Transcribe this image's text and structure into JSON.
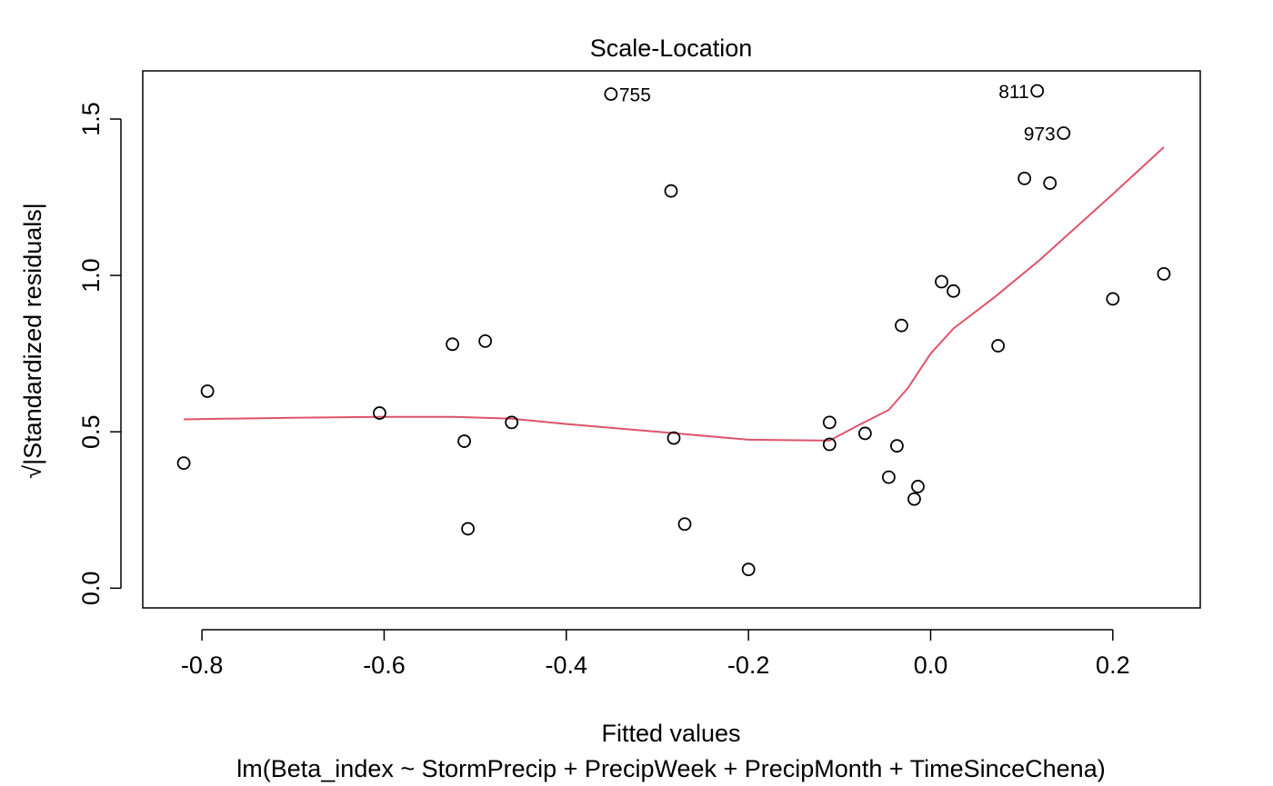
{
  "chart_data": {
    "type": "scatter",
    "title": "Scale-Location",
    "xlabel": "Fitted values",
    "subtitle": "lm(Beta_index ~ StormPrecip + PrecipWeek + PrecipMonth + TimeSinceChena)",
    "ylabel": "√|Standardized residuals|",
    "xlim": [
      -0.865,
      0.296
    ],
    "ylim": [
      -0.063,
      1.654
    ],
    "xticks": [
      -0.8,
      -0.6,
      -0.4,
      -0.2,
      0.0,
      0.2
    ],
    "xtick_labels": [
      "-0.8",
      "-0.6",
      "-0.4",
      "-0.2",
      "0.0",
      "0.2"
    ],
    "yticks": [
      0.0,
      0.5,
      1.0,
      1.5
    ],
    "ytick_labels": [
      "0.0",
      "0.5",
      "1.0",
      "1.5"
    ],
    "grid": false,
    "colors": {
      "points": "#000000",
      "smoother": "#DF536B",
      "axes": "#000000"
    },
    "points": [
      {
        "x": -0.82,
        "y": 0.4
      },
      {
        "x": -0.794,
        "y": 0.63
      },
      {
        "x": -0.605,
        "y": 0.56
      },
      {
        "x": -0.525,
        "y": 0.78
      },
      {
        "x": -0.512,
        "y": 0.47
      },
      {
        "x": -0.508,
        "y": 0.19
      },
      {
        "x": -0.489,
        "y": 0.79
      },
      {
        "x": -0.46,
        "y": 0.53
      },
      {
        "x": -0.351,
        "y": 1.58,
        "label": "755"
      },
      {
        "x": -0.285,
        "y": 1.27
      },
      {
        "x": -0.282,
        "y": 0.48
      },
      {
        "x": -0.27,
        "y": 0.205
      },
      {
        "x": -0.2,
        "y": 0.06
      },
      {
        "x": -0.111,
        "y": 0.53
      },
      {
        "x": -0.111,
        "y": 0.46
      },
      {
        "x": -0.072,
        "y": 0.495
      },
      {
        "x": -0.046,
        "y": 0.355
      },
      {
        "x": -0.037,
        "y": 0.455
      },
      {
        "x": -0.032,
        "y": 0.84
      },
      {
        "x": -0.018,
        "y": 0.285
      },
      {
        "x": -0.014,
        "y": 0.325
      },
      {
        "x": 0.012,
        "y": 0.98
      },
      {
        "x": 0.025,
        "y": 0.95
      },
      {
        "x": 0.074,
        "y": 0.775
      },
      {
        "x": 0.103,
        "y": 1.31
      },
      {
        "x": 0.117,
        "y": 1.59,
        "label": "811"
      },
      {
        "x": 0.131,
        "y": 1.295
      },
      {
        "x": 0.146,
        "y": 1.455,
        "label": "973"
      },
      {
        "x": 0.2,
        "y": 0.925
      },
      {
        "x": 0.256,
        "y": 1.005
      }
    ],
    "smoother": {
      "name": "",
      "x": [
        -0.82,
        -0.7,
        -0.605,
        -0.525,
        -0.46,
        -0.4,
        -0.34,
        -0.28,
        -0.2,
        -0.111,
        -0.08,
        -0.046,
        -0.025,
        0.0,
        0.025,
        0.07,
        0.12,
        0.2,
        0.256
      ],
      "y": [
        0.54,
        0.545,
        0.548,
        0.548,
        0.542,
        0.525,
        0.51,
        0.495,
        0.475,
        0.472,
        0.52,
        0.57,
        0.64,
        0.75,
        0.83,
        0.93,
        1.05,
        1.26,
        1.41
      ]
    }
  }
}
